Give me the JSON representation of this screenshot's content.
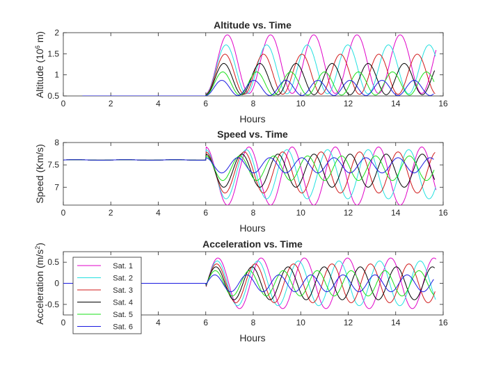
{
  "chart_data": [
    {
      "type": "line",
      "title": "Altitude vs. Time",
      "xlabel": "Hours",
      "ylabel_main": "Altitude (10",
      "ylabel_sup": "6",
      "ylabel_tail": " m)",
      "xlim": [
        0,
        16
      ],
      "ylim": [
        0.5,
        2
      ],
      "xticks": [
        "0",
        "2",
        "4",
        "6",
        "8",
        "10",
        "12",
        "14",
        "16"
      ],
      "yticks": [
        {
          "value": 0.5,
          "label": "0.5"
        },
        {
          "value": 1,
          "label": "1"
        },
        {
          "value": 1.5,
          "label": "1.5"
        },
        {
          "value": 2,
          "label": "2"
        }
      ],
      "baseline_value": 0.5,
      "start_hour": 6,
      "series": [
        {
          "name": "Sat. 1",
          "peak": 1.95,
          "trough": 0.56,
          "period": 1.82
        },
        {
          "name": "Sat. 2",
          "peak": 1.71,
          "trough": 0.55,
          "period": 1.71
        },
        {
          "name": "Sat. 3",
          "peak": 1.49,
          "trough": 0.54,
          "period": 1.62
        },
        {
          "name": "Sat. 4",
          "peak": 1.27,
          "trough": 0.53,
          "period": 1.52
        },
        {
          "name": "Sat. 5",
          "peak": 1.07,
          "trough": 0.52,
          "period": 1.43
        },
        {
          "name": "Sat. 6",
          "peak": 0.87,
          "trough": 0.51,
          "period": 1.35
        }
      ]
    },
    {
      "type": "line",
      "title": "Speed vs. Time",
      "xlabel": "Hours",
      "ylabel": "Speed (Km/s)",
      "xlim": [
        0,
        16
      ],
      "ylim": [
        6.6,
        8
      ],
      "xticks": [
        "0",
        "2",
        "4",
        "6",
        "8",
        "10",
        "12",
        "14",
        "16"
      ],
      "yticks": [
        {
          "value": 7,
          "label": "7"
        },
        {
          "value": 7.5,
          "label": "7.5"
        },
        {
          "value": 8,
          "label": "8"
        }
      ],
      "baseline_value": 7.61,
      "start_hour": 6,
      "series": [
        {
          "name": "Sat. 1",
          "max": 7.9,
          "min": 6.6
        },
        {
          "name": "Sat. 2",
          "max": 7.84,
          "min": 6.74
        },
        {
          "name": "Sat. 3",
          "max": 7.79,
          "min": 6.87
        },
        {
          "name": "Sat. 4",
          "max": 7.74,
          "min": 7.0
        },
        {
          "name": "Sat. 5",
          "max": 7.7,
          "min": 7.15
        },
        {
          "name": "Sat. 6",
          "max": 7.66,
          "min": 7.32
        }
      ]
    },
    {
      "type": "line",
      "title_main": "Acceleration vs. Time",
      "xlabel": "Hours",
      "ylabel_main": "Acceleration (m/s",
      "ylabel_sup": "2",
      "ylabel_tail": ")",
      "xlim": [
        0,
        16
      ],
      "ylim": [
        -0.75,
        0.75
      ],
      "xticks": [
        "0",
        "2",
        "4",
        "6",
        "8",
        "10",
        "12",
        "14",
        "16"
      ],
      "yticks": [
        {
          "value": -0.5,
          "label": "-0.5"
        },
        {
          "value": 0,
          "label": "0"
        },
        {
          "value": 0.5,
          "label": "0.5"
        }
      ],
      "baseline_value": 0,
      "start_hour": 6,
      "legend_position": "bottom-left",
      "series": [
        {
          "name": "Sat. 1",
          "amp": 0.6
        },
        {
          "name": "Sat. 2",
          "amp": 0.53
        },
        {
          "name": "Sat. 3",
          "amp": 0.46
        },
        {
          "name": "Sat. 4",
          "amp": 0.39
        },
        {
          "name": "Sat. 5",
          "amp": 0.3
        },
        {
          "name": "Sat. 6",
          "amp": 0.2
        }
      ]
    }
  ],
  "colors": [
    "#e000c8",
    "#22e0e0",
    "#d01818",
    "#000000",
    "#18e018",
    "#1818e0"
  ]
}
